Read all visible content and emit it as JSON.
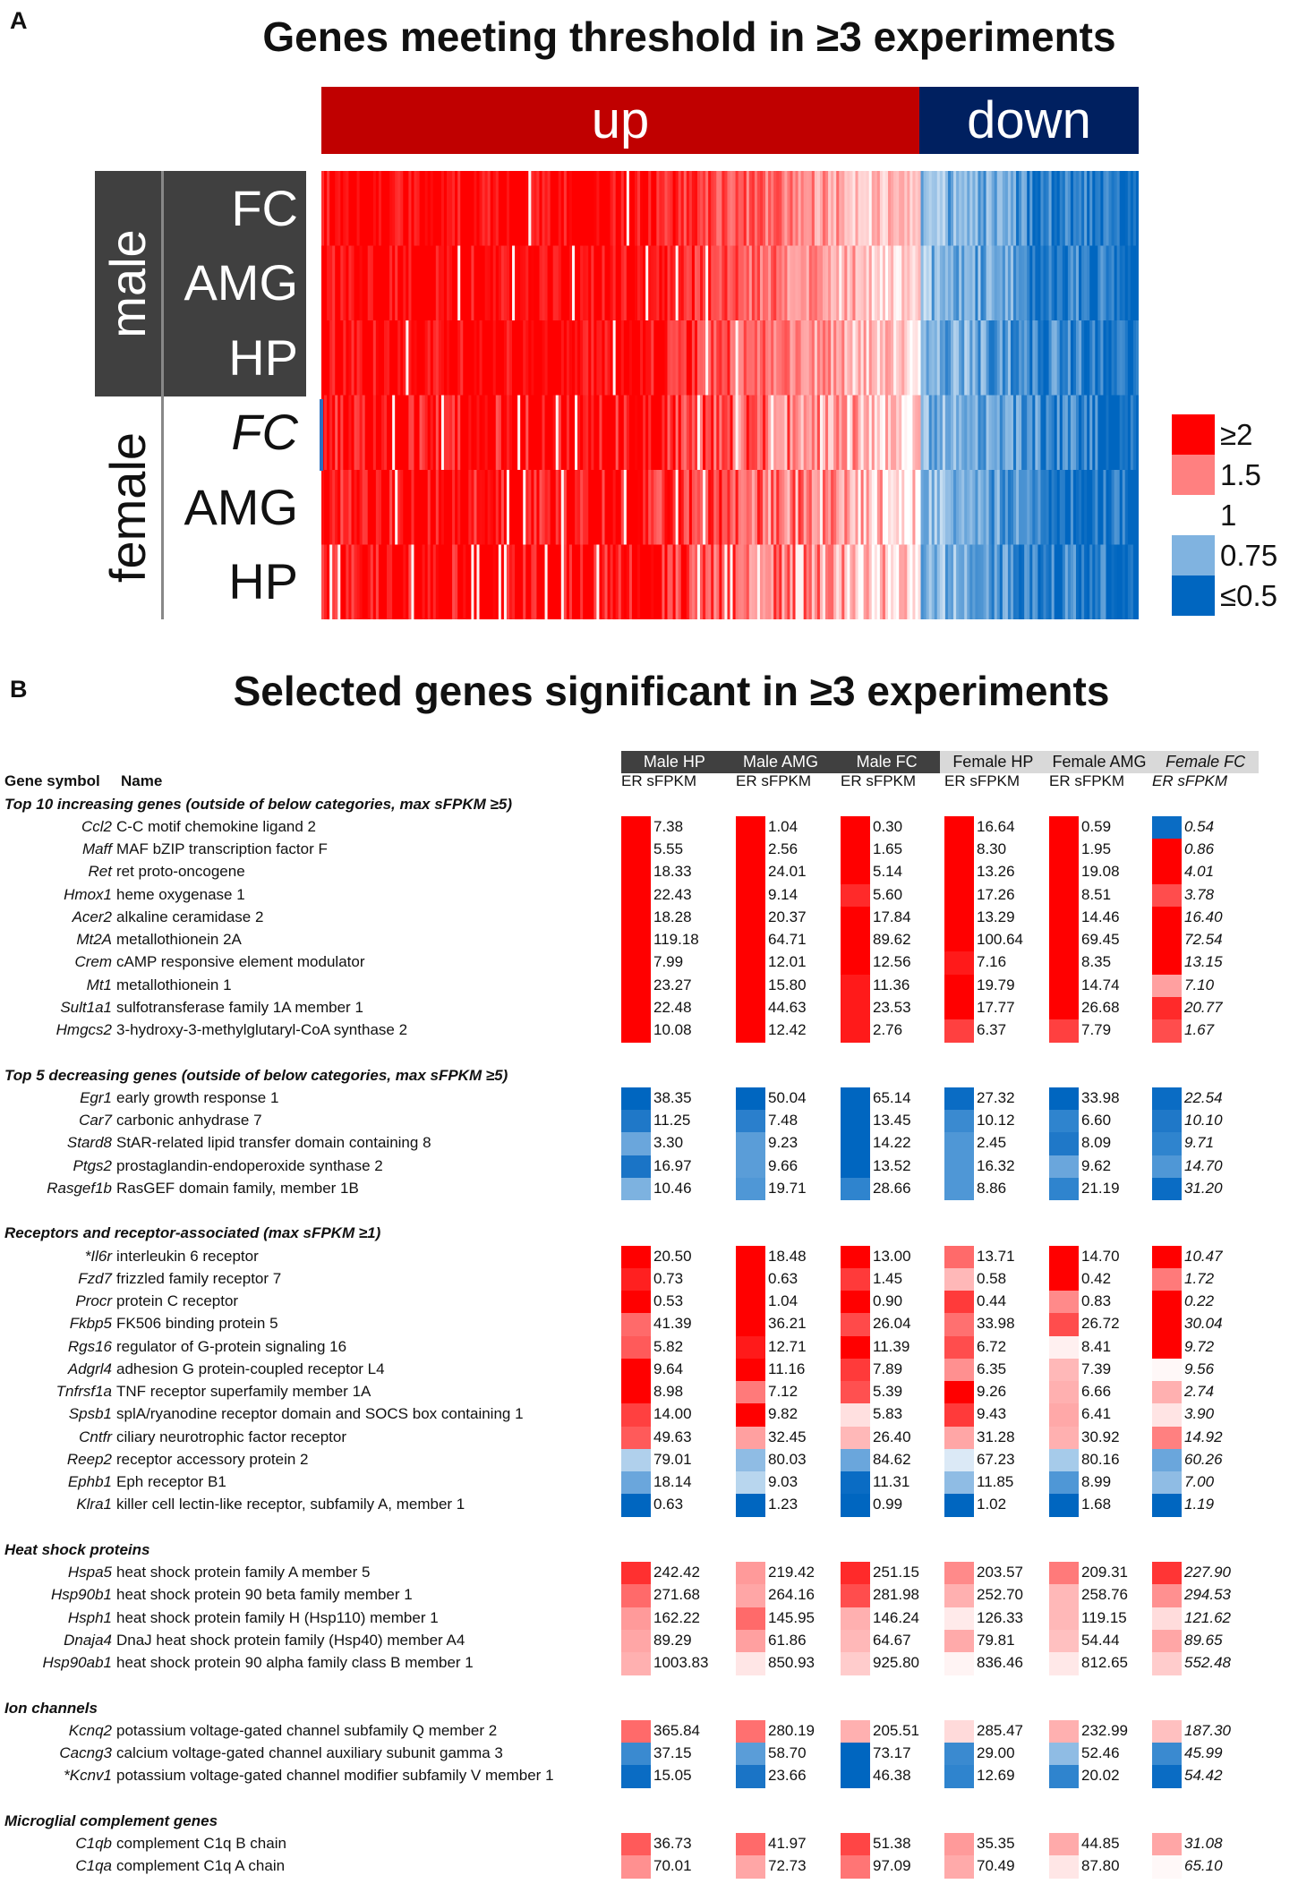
{
  "panel_a": {
    "letter": "A",
    "title": "Genes meeting threshold in ≥3 experiments",
    "bands": {
      "up": "up",
      "down": "down",
      "up_color": "#c00000",
      "down_color": "#002060"
    },
    "sex_labels": {
      "male": "male",
      "female": "female"
    },
    "rows": [
      "FC",
      "AMG",
      "HP",
      "FC",
      "AMG",
      "HP"
    ],
    "legend": [
      {
        "label": "≥2",
        "color": "#ff0000"
      },
      {
        "label": "1.5",
        "color": "#ff8080"
      },
      {
        "label": "1",
        "color": "#ffffff"
      },
      {
        "label": "0.75",
        "color": "#80b3e0"
      },
      {
        "label": "≤0.5",
        "color": "#0066c0"
      }
    ]
  },
  "panel_b": {
    "letter": "B",
    "title": "Selected genes significant in ≥3 experiments",
    "header_left": {
      "symbol": "Gene symbol",
      "name": "Name"
    },
    "columns": [
      "Male HP",
      "Male AMG",
      "Male FC",
      "Female HP",
      "Female AMG",
      "Female FC"
    ],
    "sub_label": "ER sFPKM",
    "sections": [
      {
        "title": "Top 10 increasing genes (outside of below categories, max sFPKM ≥5)",
        "rows": [
          {
            "sym": "Ccl2",
            "name": "C-C motif chemokine ligand 2",
            "vals": [
              "7.38",
              "1.04",
              "0.30",
              "16.64",
              "0.59",
              "0.54"
            ],
            "colors": [
              "#ff0000",
              "#ff0000",
              "#ff0000",
              "#ff0000",
              "#ff0000",
              "#0a6cc4"
            ]
          },
          {
            "sym": "Maff",
            "name": "MAF bZIP transcription factor F",
            "vals": [
              "5.55",
              "2.56",
              "1.65",
              "8.30",
              "1.95",
              "0.86"
            ],
            "colors": [
              "#ff0000",
              "#ff0000",
              "#ff0000",
              "#ff0000",
              "#ff0000",
              "#ff0000"
            ]
          },
          {
            "sym": "Ret",
            "name": "ret proto-oncogene",
            "vals": [
              "18.33",
              "24.01",
              "5.14",
              "13.26",
              "19.08",
              "4.01"
            ],
            "colors": [
              "#ff0000",
              "#ff0000",
              "#ff0000",
              "#ff0000",
              "#ff0000",
              "#ff0000"
            ]
          },
          {
            "sym": "Hmox1",
            "name": "heme oxygenase 1",
            "vals": [
              "22.43",
              "9.14",
              "5.60",
              "17.26",
              "8.51",
              "3.78"
            ],
            "colors": [
              "#ff0000",
              "#ff0000",
              "#ff2a2a",
              "#ff0000",
              "#ff0000",
              "#ff4d4d"
            ]
          },
          {
            "sym": "Acer2",
            "name": "alkaline ceramidase 2",
            "vals": [
              "18.28",
              "20.37",
              "17.84",
              "13.29",
              "14.46",
              "16.40"
            ],
            "colors": [
              "#ff0000",
              "#ff0000",
              "#ff0000",
              "#ff0000",
              "#ff0000",
              "#ff0000"
            ]
          },
          {
            "sym": "Mt2A",
            "name": "metallothionein 2A",
            "vals": [
              "119.18",
              "64.71",
              "89.62",
              "100.64",
              "69.45",
              "72.54"
            ],
            "colors": [
              "#ff0000",
              "#ff0000",
              "#ff0000",
              "#ff0000",
              "#ff0000",
              "#ff0000"
            ]
          },
          {
            "sym": "Crem",
            "name": "cAMP responsive element modulator",
            "vals": [
              "7.99",
              "12.01",
              "12.56",
              "7.16",
              "8.35",
              "13.15"
            ],
            "colors": [
              "#ff0000",
              "#ff0000",
              "#ff0000",
              "#ff1a1a",
              "#ff0000",
              "#ff0000"
            ]
          },
          {
            "sym": "Mt1",
            "name": "metallothionein 1",
            "vals": [
              "23.27",
              "15.80",
              "11.36",
              "19.79",
              "14.74",
              "7.10"
            ],
            "colors": [
              "#ff0000",
              "#ff0000",
              "#ff1a1a",
              "#ff0000",
              "#ff0000",
              "#ffa0a0"
            ]
          },
          {
            "sym": "Sult1a1",
            "name": "sulfotransferase family 1A member 1",
            "vals": [
              "22.48",
              "44.63",
              "23.53",
              "17.77",
              "26.68",
              "20.77"
            ],
            "colors": [
              "#ff0000",
              "#ff0000",
              "#ff1a1a",
              "#ff0000",
              "#ff0000",
              "#ff2a2a"
            ]
          },
          {
            "sym": "Hmgcs2",
            "name": "3-hydroxy-3-methylglutaryl-CoA synthase 2",
            "vals": [
              "10.08",
              "12.42",
              "2.76",
              "6.37",
              "7.79",
              "1.67"
            ],
            "colors": [
              "#ff0000",
              "#ff0000",
              "#ff1a1a",
              "#ff4040",
              "#ff4040",
              "#ff4d4d"
            ]
          }
        ]
      },
      {
        "title": "Top 5 decreasing genes (outside of below categories, max sFPKM ≥5)",
        "rows": [
          {
            "sym": "Egr1",
            "name": "early growth response 1",
            "vals": [
              "38.35",
              "50.04",
              "65.14",
              "27.32",
              "33.98",
              "22.54"
            ],
            "colors": [
              "#0066c0",
              "#0066c0",
              "#0066c0",
              "#0a6cc4",
              "#0066c0",
              "#0a6cc4"
            ]
          },
          {
            "sym": "Car7",
            "name": "carbonic anhydrase 7",
            "vals": [
              "11.25",
              "7.48",
              "13.45",
              "10.12",
              "6.60",
              "10.10"
            ],
            "colors": [
              "#1f78c8",
              "#2a7fcc",
              "#0066c0",
              "#3a8ad0",
              "#2f84ce",
              "#1f78c8"
            ]
          },
          {
            "sym": "Stard8",
            "name": "StAR-related lipid transfer domain containing 8",
            "vals": [
              "3.30",
              "9.23",
              "14.22",
              "2.45",
              "8.09",
              "9.71"
            ],
            "colors": [
              "#6aa6dc",
              "#5a9dd8",
              "#0066c0",
              "#4f97d6",
              "#1f78c8",
              "#2f84ce"
            ]
          },
          {
            "sym": "Ptgs2",
            "name": "prostaglandin-endoperoxide synthase 2",
            "vals": [
              "16.97",
              "9.66",
              "13.52",
              "16.32",
              "9.62",
              "14.70"
            ],
            "colors": [
              "#1a74c6",
              "#5a9dd8",
              "#0066c0",
              "#4f97d6",
              "#6aa6dc",
              "#4f97d6"
            ]
          },
          {
            "sym": "Rasgef1b",
            "name": "RasGEF domain family, member 1B",
            "vals": [
              "10.46",
              "19.71",
              "28.66",
              "8.86",
              "21.19",
              "31.20"
            ],
            "colors": [
              "#7db2e0",
              "#4f97d6",
              "#2f84ce",
              "#4f97d6",
              "#2f84ce",
              "#0a6cc4"
            ]
          }
        ]
      },
      {
        "title": "Receptors and receptor-associated (max sFPKM ≥1)",
        "rows": [
          {
            "sym": "*Il6r",
            "name": "interleukin 6 receptor",
            "vals": [
              "20.50",
              "18.48",
              "13.00",
              "13.71",
              "14.70",
              "10.47"
            ],
            "colors": [
              "#ff0000",
              "#ff0000",
              "#ff0000",
              "#ff6a6a",
              "#ff0000",
              "#ff0000"
            ]
          },
          {
            "sym": "Fzd7",
            "name": "frizzled family receptor 7",
            "vals": [
              "0.73",
              "0.63",
              "1.45",
              "0.58",
              "0.42",
              "1.72"
            ],
            "colors": [
              "#ff2020",
              "#ff0000",
              "#ff3a3a",
              "#ffb8b8",
              "#ff0000",
              "#ff7a7a"
            ]
          },
          {
            "sym": "Procr",
            "name": "protein C receptor",
            "vals": [
              "0.53",
              "1.04",
              "0.90",
              "0.44",
              "0.83",
              "0.22"
            ],
            "colors": [
              "#ff0000",
              "#ff0000",
              "#ff0000",
              "#ff3a3a",
              "#ff8a8a",
              "#ff0000"
            ]
          },
          {
            "sym": "Fkbp5",
            "name": "FK506 binding protein 5",
            "vals": [
              "41.39",
              "36.21",
              "26.04",
              "33.98",
              "26.72",
              "30.04"
            ],
            "colors": [
              "#ff6a6a",
              "#ff0000",
              "#ff4a4a",
              "#ff7070",
              "#ff4d4d",
              "#ff0000"
            ]
          },
          {
            "sym": "Rgs16",
            "name": "regulator of G-protein signaling 16",
            "vals": [
              "5.82",
              "12.71",
              "11.39",
              "6.72",
              "8.41",
              "9.72"
            ],
            "colors": [
              "#ff5a5a",
              "#ff1a1a",
              "#ff0000",
              "#ff4d4d",
              "#fff0f0",
              "#ff0000"
            ]
          },
          {
            "sym": "Adgrl4",
            "name": "adhesion G protein-coupled receptor L4",
            "vals": [
              "9.64",
              "11.16",
              "7.89",
              "6.35",
              "7.39",
              "9.56"
            ],
            "colors": [
              "#ff0000",
              "#ff0000",
              "#ff3a3a",
              "#ff9090",
              "#ffb8b8",
              "#fff8f8"
            ]
          },
          {
            "sym": "Tnfrsf1a",
            "name": "TNF receptor superfamily member 1A",
            "vals": [
              "8.98",
              "7.12",
              "5.39",
              "9.26",
              "6.66",
              "2.74"
            ],
            "colors": [
              "#ff0000",
              "#ff7a7a",
              "#ff5050",
              "#ff0000",
              "#ffb0b0",
              "#ffb0b0"
            ]
          },
          {
            "sym": "Spsb1",
            "name": "splA/ryanodine receptor domain and SOCS box containing 1",
            "vals": [
              "14.00",
              "9.82",
              "5.83",
              "9.43",
              "6.41",
              "3.90"
            ],
            "colors": [
              "#ff4040",
              "#ff0000",
              "#ffe0e0",
              "#ff3a3a",
              "#ffa8a8",
              "#ffe4e4"
            ]
          },
          {
            "sym": "Cntfr",
            "name": "ciliary neurotrophic factor receptor",
            "vals": [
              "49.63",
              "32.45",
              "26.40",
              "31.28",
              "30.92",
              "14.92"
            ],
            "colors": [
              "#ff5a5a",
              "#ffa0a0",
              "#ffb8b8",
              "#ffa6a6",
              "#ffb0b0",
              "#ff8080"
            ]
          },
          {
            "sym": "Reep2",
            "name": "receptor accessory protein 2",
            "vals": [
              "79.01",
              "80.03",
              "84.62",
              "67.23",
              "80.16",
              "60.26"
            ],
            "colors": [
              "#b0d0ec",
              "#8fbce4",
              "#6aa6dc",
              "#dbe9f6",
              "#a6cbea",
              "#6aa6dc"
            ]
          },
          {
            "sym": "Ephb1",
            "name": "Eph receptor B1",
            "vals": [
              "18.14",
              "9.03",
              "11.31",
              "11.85",
              "8.99",
              "7.00"
            ],
            "colors": [
              "#6aa6dc",
              "#b8d6ee",
              "#0a6cc4",
              "#8fbce4",
              "#4f97d6",
              "#8fbce4"
            ]
          },
          {
            "sym": "Klra1",
            "name": "killer cell lectin-like receptor, subfamily A, member 1",
            "vals": [
              "0.63",
              "1.23",
              "0.99",
              "1.02",
              "1.68",
              "1.19"
            ],
            "colors": [
              "#0066c0",
              "#0066c0",
              "#0066c0",
              "#0066c0",
              "#0066c0",
              "#0066c0"
            ]
          }
        ]
      },
      {
        "title": "Heat shock proteins",
        "rows": [
          {
            "sym": "Hspa5",
            "name": "heat shock protein family A member 5",
            "vals": [
              "242.42",
              "219.42",
              "251.15",
              "203.57",
              "209.31",
              "227.90"
            ],
            "colors": [
              "#ff3030",
              "#ff9a9a",
              "#ff2a2a",
              "#ff8a8a",
              "#ff7a7a",
              "#ff3535"
            ]
          },
          {
            "sym": "Hsp90b1",
            "name": "heat shock protein 90 beta family member 1",
            "vals": [
              "271.68",
              "264.16",
              "281.98",
              "252.70",
              "258.76",
              "294.53"
            ],
            "colors": [
              "#ff6a6a",
              "#ffa6a6",
              "#ff4d4d",
              "#ffb0b0",
              "#ffb8b8",
              "#ff9090"
            ]
          },
          {
            "sym": "Hsph1",
            "name": "heat shock protein family H (Hsp110) member 1",
            "vals": [
              "162.22",
              "145.95",
              "146.24",
              "126.33",
              "119.15",
              "121.62"
            ],
            "colors": [
              "#ff9a9a",
              "#ff6a6a",
              "#ffb0b0",
              "#ffeaea",
              "#ffb8b8",
              "#ffdcdc"
            ]
          },
          {
            "sym": "Dnaja4",
            "name": "DnaJ heat shock protein family (Hsp40) member A4",
            "vals": [
              "89.29",
              "61.86",
              "64.67",
              "79.81",
              "54.44",
              "89.65"
            ],
            "colors": [
              "#ffa6a6",
              "#ffa0a0",
              "#ffb8b8",
              "#ffaaaa",
              "#ffc0c0",
              "#ffa6a6"
            ]
          },
          {
            "sym": "Hsp90ab1",
            "name": "heat shock protein 90 alpha family class B member 1",
            "vals": [
              "1003.83",
              "850.93",
              "925.80",
              "836.46",
              "812.65",
              "552.48"
            ],
            "colors": [
              "#ffb0b0",
              "#ffe6e6",
              "#ffcccc",
              "#fff4f4",
              "#ffe8e8",
              "#ffcccc"
            ]
          }
        ]
      },
      {
        "title": "Ion channels",
        "rows": [
          {
            "sym": "Kcnq2",
            "name": "potassium voltage-gated channel subfamily Q member 2",
            "vals": [
              "365.84",
              "280.19",
              "205.51",
              "285.47",
              "232.99",
              "187.30"
            ],
            "colors": [
              "#ff6a6a",
              "#ff7070",
              "#ffb0b0",
              "#ffdada",
              "#ffb0b0",
              "#ffc0c0"
            ]
          },
          {
            "sym": "Cacng3",
            "name": "calcium voltage-gated channel auxiliary subunit gamma 3",
            "vals": [
              "37.15",
              "58.70",
              "73.17",
              "29.00",
              "52.46",
              "45.99"
            ],
            "colors": [
              "#3a8ad0",
              "#5a9dd8",
              "#0066c0",
              "#3a8ad0",
              "#8fbce4",
              "#3a8ad0"
            ]
          },
          {
            "sym": "*Kcnv1",
            "name": "potassium voltage-gated channel modifier subfamily V member 1",
            "vals": [
              "15.05",
              "23.66",
              "46.38",
              "12.69",
              "20.02",
              "54.42"
            ],
            "colors": [
              "#0a6cc4",
              "#1a74c6",
              "#0066c0",
              "#2f84ce",
              "#2f84ce",
              "#0a6cc4"
            ]
          }
        ]
      },
      {
        "title": "Microglial complement genes",
        "rows": [
          {
            "sym": "C1qb",
            "name": "complement C1q B chain",
            "vals": [
              "36.73",
              "41.97",
              "51.38",
              "35.35",
              "44.85",
              "31.08"
            ],
            "colors": [
              "#ff5a5a",
              "#ff6a6a",
              "#ff4545",
              "#ff9a9a",
              "#ffaaaa",
              "#ffa6a6"
            ]
          },
          {
            "sym": "C1qa",
            "name": "complement C1q A chain",
            "vals": [
              "70.01",
              "72.73",
              "97.09",
              "70.49",
              "87.80",
              "65.10"
            ],
            "colors": [
              "#ff9090",
              "#ffa6a6",
              "#ff7575",
              "#ffaaaa",
              "#ffe6e6",
              "#fff8f8"
            ]
          }
        ]
      }
    ]
  },
  "chart_data": [
    {
      "type": "heatmap",
      "title": "Genes meeting threshold in ≥3 experiments",
      "column_groups": [
        "up",
        "down"
      ],
      "rows": [
        "male FC",
        "male AMG",
        "male HP",
        "female FC",
        "female AMG",
        "female HP"
      ],
      "legend": [
        "≥2",
        "1.5",
        "1",
        "0.75",
        "≤0.5"
      ],
      "scale": "fold change (ER)"
    },
    {
      "type": "table",
      "title": "Selected genes significant in ≥3 experiments"
    }
  ]
}
